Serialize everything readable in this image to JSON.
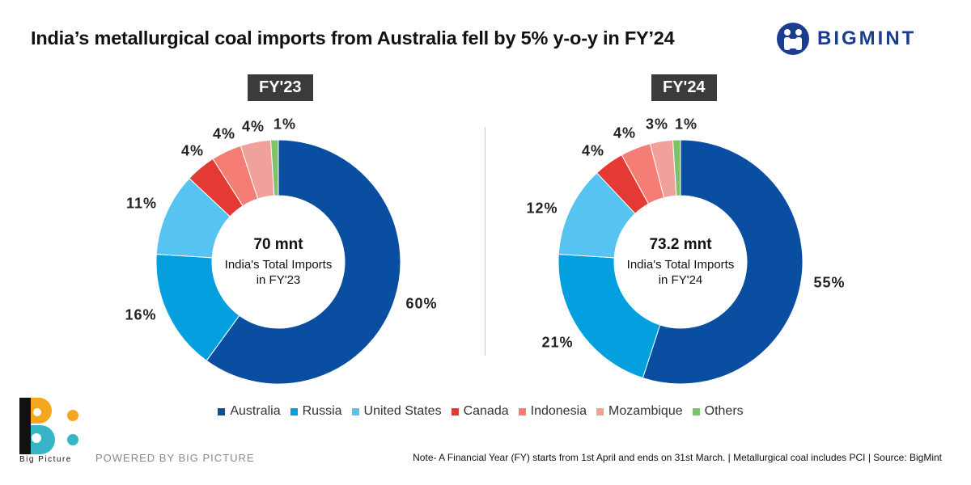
{
  "header": {
    "title": "India’s metallurgical coal  imports from Australia fell by 5% y-o-y in FY’24",
    "brand": "BIGMINT"
  },
  "chart_data": [
    {
      "type": "pie",
      "donut": true,
      "title": "FY'23",
      "center_total": "70 mnt",
      "center_line1": "India's Total Imports",
      "center_line2": "in FY'23",
      "categories": [
        "Australia",
        "Russia",
        "United States",
        "Canada",
        "Indonesia",
        "Mozambique",
        "Others"
      ],
      "values": [
        60,
        16,
        11,
        4,
        4,
        4,
        1
      ],
      "labels": [
        "60%",
        "16%",
        "11%",
        "4%",
        "4%",
        "4%",
        "1%"
      ]
    },
    {
      "type": "pie",
      "donut": true,
      "title": "FY'24",
      "center_total": "73.2 mnt",
      "center_line1": "India's Total Imports",
      "center_line2": "in FY'24",
      "categories": [
        "Australia",
        "Russia",
        "United States",
        "Canada",
        "Indonesia",
        "Mozambique",
        "Others"
      ],
      "values": [
        55,
        21,
        12,
        4,
        4,
        3,
        1
      ],
      "labels": [
        "55%",
        "21%",
        "12%",
        "4%",
        "4%",
        "3%",
        "1%"
      ]
    }
  ],
  "legend": [
    {
      "label": "Australia",
      "color": "#0a4ea2"
    },
    {
      "label": "Russia",
      "color": "#039fdf"
    },
    {
      "label": "United States",
      "color": "#57c3f0"
    },
    {
      "label": "Canada",
      "color": "#e53935"
    },
    {
      "label": "Indonesia",
      "color": "#f47d75"
    },
    {
      "label": "Mozambique",
      "color": "#f1a19c"
    },
    {
      "label": "Others",
      "color": "#7cc36a"
    }
  ],
  "footer": {
    "logo_text": "Big Picture",
    "powered": "POWERED BY BIG PICTURE",
    "note": "Note- A Financial Year (FY) starts from 1st April and ends on 31st March. | Metallurgical coal includes PCI | Source: BigMint"
  }
}
